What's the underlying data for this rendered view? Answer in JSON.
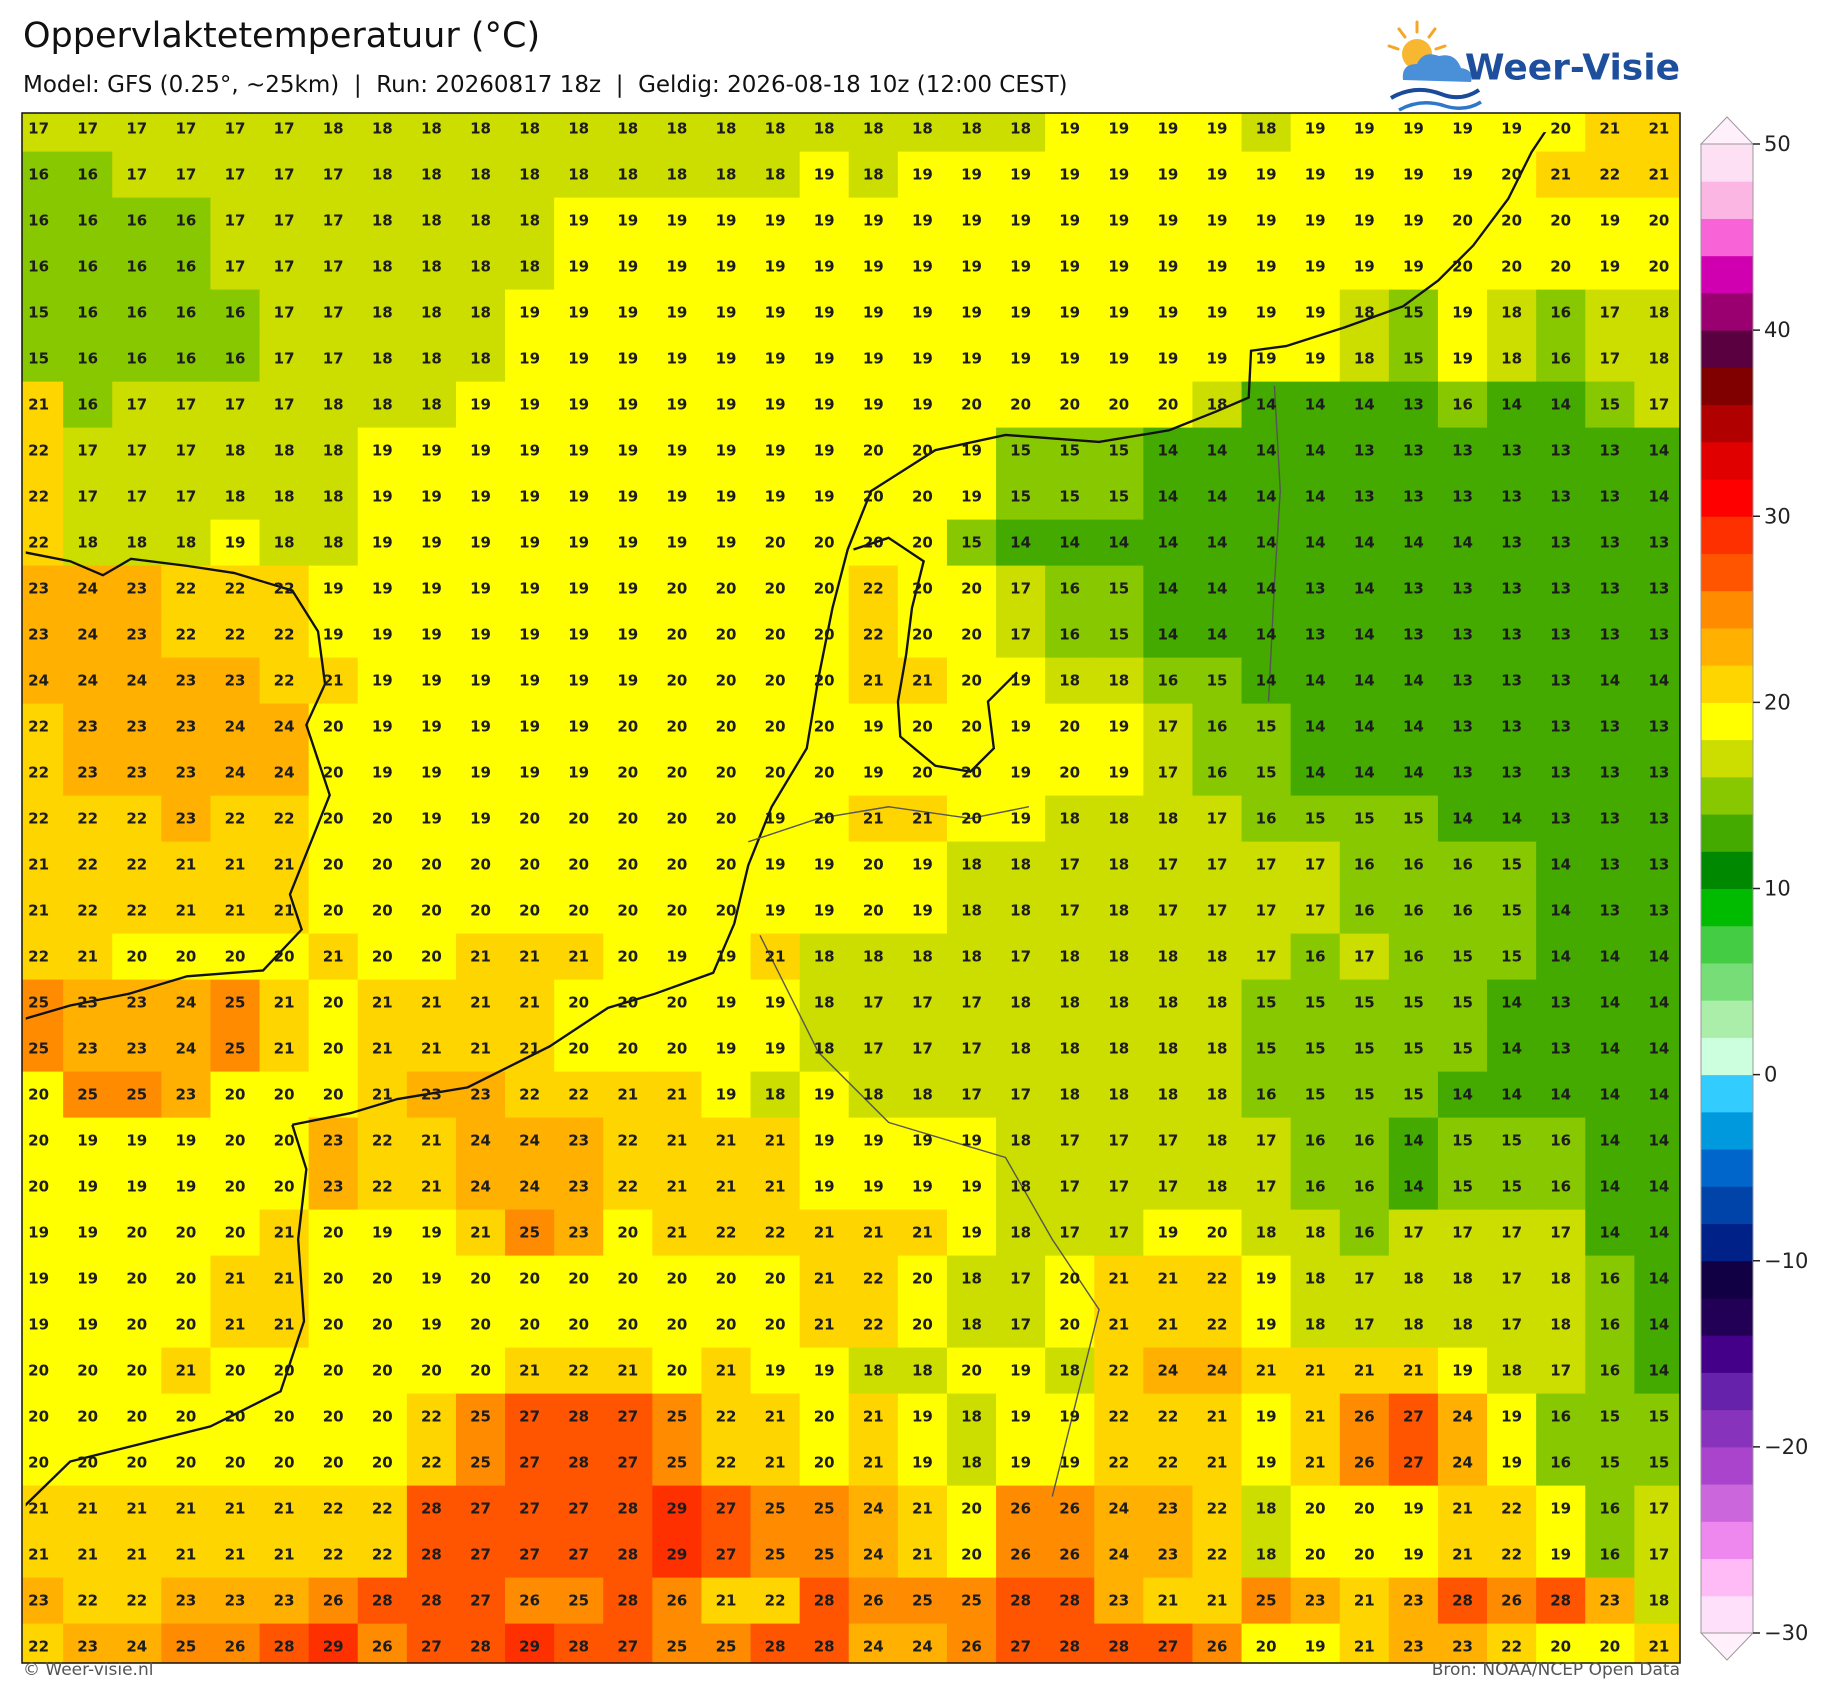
{
  "title": "Oppervlaktetemperatuur (°C)",
  "subtitle": "Model: GFS (0.25°, ~25km)  |  Run: 20260817 18z  |  Geldig: 2026-08-18 10z (12:00 CEST)",
  "logo": "Weer-Visie",
  "footer": {
    "left": "© Weer-visie.nl",
    "right": "Bron: NOAA/NCEP Open Data"
  },
  "grid": {
    "rows": [
      [
        17,
        17,
        17,
        17,
        17,
        17,
        18,
        18,
        18,
        18,
        18,
        18,
        18,
        18,
        18,
        18,
        18,
        18,
        18,
        18,
        18,
        19,
        19,
        19,
        19,
        18,
        19,
        19,
        19,
        19,
        19,
        20,
        21,
        21
      ],
      [
        16,
        16,
        17,
        17,
        17,
        17,
        17,
        18,
        18,
        18,
        18,
        18,
        18,
        18,
        18,
        18,
        19,
        18,
        19,
        19,
        19,
        19,
        19,
        19,
        19,
        19,
        19,
        19,
        19,
        19,
        20,
        21,
        22,
        21
      ],
      [
        16,
        16,
        16,
        16,
        17,
        17,
        17,
        18,
        18,
        18,
        18,
        19,
        19,
        19,
        19,
        19,
        19,
        19,
        19,
        19,
        19,
        19,
        19,
        19,
        19,
        19,
        19,
        19,
        19,
        20,
        20,
        20,
        19,
        20
      ],
      [
        16,
        16,
        16,
        16,
        17,
        17,
        17,
        18,
        18,
        18,
        18,
        19,
        19,
        19,
        19,
        19,
        19,
        19,
        19,
        19,
        19,
        19,
        19,
        19,
        19,
        19,
        19,
        19,
        19,
        20,
        20,
        20,
        19,
        20
      ],
      [
        15,
        16,
        16,
        16,
        16,
        17,
        17,
        18,
        18,
        18,
        19,
        19,
        19,
        19,
        19,
        19,
        19,
        19,
        19,
        19,
        19,
        19,
        19,
        19,
        19,
        19,
        19,
        18,
        15,
        19,
        18,
        16,
        17,
        18
      ],
      [
        15,
        16,
        16,
        16,
        16,
        17,
        17,
        18,
        18,
        18,
        19,
        19,
        19,
        19,
        19,
        19,
        19,
        19,
        19,
        19,
        19,
        19,
        19,
        19,
        19,
        19,
        19,
        18,
        15,
        19,
        18,
        16,
        17,
        18
      ],
      [
        21,
        16,
        17,
        17,
        17,
        17,
        18,
        18,
        18,
        19,
        19,
        19,
        19,
        19,
        19,
        19,
        19,
        19,
        19,
        20,
        20,
        20,
        20,
        20,
        18,
        14,
        14,
        14,
        13,
        16,
        14,
        14,
        15,
        17
      ],
      [
        22,
        17,
        17,
        17,
        18,
        18,
        18,
        19,
        19,
        19,
        19,
        19,
        19,
        19,
        19,
        19,
        19,
        20,
        20,
        19,
        15,
        15,
        15,
        14,
        14,
        14,
        14,
        13,
        13,
        13,
        13,
        13,
        13,
        14
      ],
      [
        22,
        17,
        17,
        17,
        18,
        18,
        18,
        19,
        19,
        19,
        19,
        19,
        19,
        19,
        19,
        19,
        19,
        20,
        20,
        19,
        15,
        15,
        15,
        14,
        14,
        14,
        14,
        13,
        13,
        13,
        13,
        13,
        13,
        14
      ],
      [
        22,
        18,
        18,
        18,
        19,
        18,
        18,
        19,
        19,
        19,
        19,
        19,
        19,
        19,
        19,
        20,
        20,
        20,
        20,
        15,
        14,
        14,
        14,
        14,
        14,
        14,
        14,
        14,
        14,
        14,
        13,
        13,
        13,
        13
      ],
      [
        23,
        24,
        23,
        22,
        22,
        22,
        19,
        19,
        19,
        19,
        19,
        19,
        19,
        20,
        20,
        20,
        20,
        22,
        20,
        20,
        17,
        16,
        15,
        14,
        14,
        14,
        13,
        14,
        13,
        13,
        13,
        13,
        13,
        13
      ],
      [
        23,
        24,
        23,
        22,
        22,
        22,
        19,
        19,
        19,
        19,
        19,
        19,
        19,
        20,
        20,
        20,
        20,
        22,
        20,
        20,
        17,
        16,
        15,
        14,
        14,
        14,
        13,
        14,
        13,
        13,
        13,
        13,
        13,
        13
      ],
      [
        24,
        24,
        24,
        23,
        23,
        22,
        21,
        19,
        19,
        19,
        19,
        19,
        19,
        20,
        20,
        20,
        20,
        21,
        21,
        20,
        19,
        18,
        18,
        16,
        15,
        14,
        14,
        14,
        14,
        13,
        13,
        13,
        14,
        14
      ],
      [
        22,
        23,
        23,
        23,
        24,
        24,
        20,
        19,
        19,
        19,
        19,
        19,
        20,
        20,
        20,
        20,
        20,
        19,
        20,
        20,
        19,
        20,
        19,
        17,
        16,
        15,
        14,
        14,
        14,
        13,
        13,
        13,
        13,
        13
      ],
      [
        22,
        23,
        23,
        23,
        24,
        24,
        20,
        19,
        19,
        19,
        19,
        19,
        20,
        20,
        20,
        20,
        20,
        19,
        20,
        20,
        19,
        20,
        19,
        17,
        16,
        15,
        14,
        14,
        14,
        13,
        13,
        13,
        13,
        13
      ],
      [
        22,
        22,
        22,
        23,
        22,
        22,
        20,
        20,
        19,
        19,
        20,
        20,
        20,
        20,
        20,
        19,
        20,
        21,
        21,
        20,
        19,
        18,
        18,
        18,
        17,
        16,
        15,
        15,
        15,
        14,
        14,
        13,
        13,
        13
      ],
      [
        21,
        22,
        22,
        21,
        21,
        21,
        20,
        20,
        20,
        20,
        20,
        20,
        20,
        20,
        20,
        19,
        19,
        20,
        19,
        18,
        18,
        17,
        18,
        17,
        17,
        17,
        17,
        16,
        16,
        16,
        15,
        14,
        13,
        13
      ],
      [
        21,
        22,
        22,
        21,
        21,
        21,
        20,
        20,
        20,
        20,
        20,
        20,
        20,
        20,
        20,
        19,
        19,
        20,
        19,
        18,
        18,
        17,
        18,
        17,
        17,
        17,
        17,
        16,
        16,
        16,
        15,
        14,
        13,
        13
      ],
      [
        22,
        21,
        20,
        20,
        20,
        20,
        21,
        20,
        20,
        21,
        21,
        21,
        20,
        19,
        19,
        21,
        18,
        18,
        18,
        18,
        17,
        18,
        18,
        18,
        18,
        17,
        16,
        17,
        16,
        15,
        15,
        14,
        14,
        14
      ],
      [
        25,
        23,
        23,
        24,
        25,
        21,
        20,
        21,
        21,
        21,
        21,
        20,
        20,
        20,
        19,
        19,
        18,
        17,
        17,
        17,
        18,
        18,
        18,
        18,
        18,
        15,
        15,
        15,
        15,
        15,
        14,
        13,
        14,
        14
      ],
      [
        25,
        23,
        23,
        24,
        25,
        21,
        20,
        21,
        21,
        21,
        21,
        20,
        20,
        20,
        19,
        19,
        18,
        17,
        17,
        17,
        18,
        18,
        18,
        18,
        18,
        15,
        15,
        15,
        15,
        15,
        14,
        13,
        14,
        14
      ],
      [
        20,
        25,
        25,
        23,
        20,
        20,
        20,
        21,
        23,
        23,
        22,
        22,
        21,
        21,
        19,
        18,
        19,
        18,
        18,
        17,
        17,
        18,
        18,
        18,
        18,
        16,
        15,
        15,
        15,
        14,
        14,
        14,
        14,
        14
      ],
      [
        20,
        19,
        19,
        19,
        20,
        20,
        23,
        22,
        21,
        24,
        24,
        23,
        22,
        21,
        21,
        21,
        19,
        19,
        19,
        19,
        18,
        17,
        17,
        17,
        18,
        17,
        16,
        16,
        14,
        15,
        15,
        16,
        14,
        14
      ],
      [
        20,
        19,
        19,
        19,
        20,
        20,
        23,
        22,
        21,
        24,
        24,
        23,
        22,
        21,
        21,
        21,
        19,
        19,
        19,
        19,
        18,
        17,
        17,
        17,
        18,
        17,
        16,
        16,
        14,
        15,
        15,
        16,
        14,
        14
      ],
      [
        19,
        19,
        20,
        20,
        20,
        21,
        20,
        19,
        19,
        21,
        25,
        23,
        20,
        21,
        22,
        22,
        21,
        21,
        21,
        19,
        18,
        17,
        17,
        19,
        20,
        18,
        18,
        16,
        17,
        17,
        17,
        17,
        14,
        14
      ],
      [
        19,
        19,
        20,
        20,
        21,
        21,
        20,
        20,
        19,
        20,
        20,
        20,
        20,
        20,
        20,
        20,
        21,
        22,
        20,
        18,
        17,
        20,
        21,
        21,
        22,
        19,
        18,
        17,
        18,
        18,
        17,
        18,
        16,
        14
      ],
      [
        19,
        19,
        20,
        20,
        21,
        21,
        20,
        20,
        19,
        20,
        20,
        20,
        20,
        20,
        20,
        20,
        21,
        22,
        20,
        18,
        17,
        20,
        21,
        21,
        22,
        19,
        18,
        17,
        18,
        18,
        17,
        18,
        16,
        14
      ],
      [
        20,
        20,
        20,
        21,
        20,
        20,
        20,
        20,
        20,
        20,
        21,
        22,
        21,
        20,
        21,
        19,
        19,
        18,
        18,
        20,
        19,
        18,
        22,
        24,
        24,
        21,
        21,
        21,
        21,
        19,
        18,
        17,
        16,
        14
      ],
      [
        20,
        20,
        20,
        20,
        20,
        20,
        20,
        20,
        22,
        25,
        27,
        28,
        27,
        25,
        22,
        21,
        20,
        21,
        19,
        18,
        19,
        19,
        22,
        22,
        21,
        19,
        21,
        26,
        27,
        24,
        19,
        16,
        15,
        15
      ],
      [
        20,
        20,
        20,
        20,
        20,
        20,
        20,
        20,
        22,
        25,
        27,
        28,
        27,
        25,
        22,
        21,
        20,
        21,
        19,
        18,
        19,
        19,
        22,
        22,
        21,
        19,
        21,
        26,
        27,
        24,
        19,
        16,
        15,
        15
      ],
      [
        21,
        21,
        21,
        21,
        21,
        21,
        22,
        22,
        28,
        27,
        27,
        27,
        28,
        29,
        27,
        25,
        25,
        24,
        21,
        20,
        26,
        26,
        24,
        23,
        22,
        18,
        20,
        20,
        19,
        21,
        22,
        19,
        16,
        17
      ],
      [
        21,
        21,
        21,
        21,
        21,
        21,
        22,
        22,
        28,
        27,
        27,
        27,
        28,
        29,
        27,
        25,
        25,
        24,
        21,
        20,
        26,
        26,
        24,
        23,
        22,
        18,
        20,
        20,
        19,
        21,
        22,
        19,
        16,
        17
      ],
      [
        23,
        22,
        22,
        23,
        23,
        23,
        26,
        28,
        28,
        27,
        26,
        25,
        28,
        26,
        21,
        22,
        28,
        26,
        25,
        25,
        28,
        28,
        23,
        21,
        21,
        25,
        23,
        21,
        23,
        28,
        26,
        28,
        23,
        18
      ],
      [
        22,
        23,
        24,
        25,
        26,
        28,
        29,
        26,
        27,
        28,
        29,
        28,
        27,
        25,
        25,
        28,
        28,
        24,
        24,
        26,
        27,
        28,
        28,
        27,
        26,
        20,
        19,
        21,
        23,
        23,
        22,
        20,
        20,
        21
      ]
    ]
  },
  "colorbar": {
    "lim": [
      -30,
      50
    ],
    "step": 2,
    "ticks": [
      {
        "value": -30,
        "label": "−30"
      },
      {
        "value": -20,
        "label": "−20"
      },
      {
        "value": -10,
        "label": "−10"
      },
      0,
      10,
      20,
      30,
      40,
      50
    ],
    "under": "#fff0fb",
    "over": "#fff0fb",
    "colors": [
      "#ffe0fa",
      "#ffbbf5",
      "#ee88ee",
      "#cc66dd",
      "#aa44cc",
      "#8833bb",
      "#6622aa",
      "#440088",
      "#220055",
      "#110044",
      "#002288",
      "#0044aa",
      "#0066cc",
      "#0099dd",
      "#33ccff",
      "#ccffdd",
      "#aaeeaa",
      "#77dd77",
      "#44cc44",
      "#00bb00",
      "#008800",
      "#44aa00",
      "#88c800",
      "#ccdd00",
      "#ffff00",
      "#ffd500",
      "#ffb000",
      "#ff8c00",
      "#ff5500",
      "#ff3000",
      "#ff0000",
      "#e00000",
      "#b00000",
      "#800000",
      "#5a0040",
      "#9a0070",
      "#d000b0",
      "#f864d8",
      "#fcb6e4",
      "#fde0f4"
    ]
  }
}
